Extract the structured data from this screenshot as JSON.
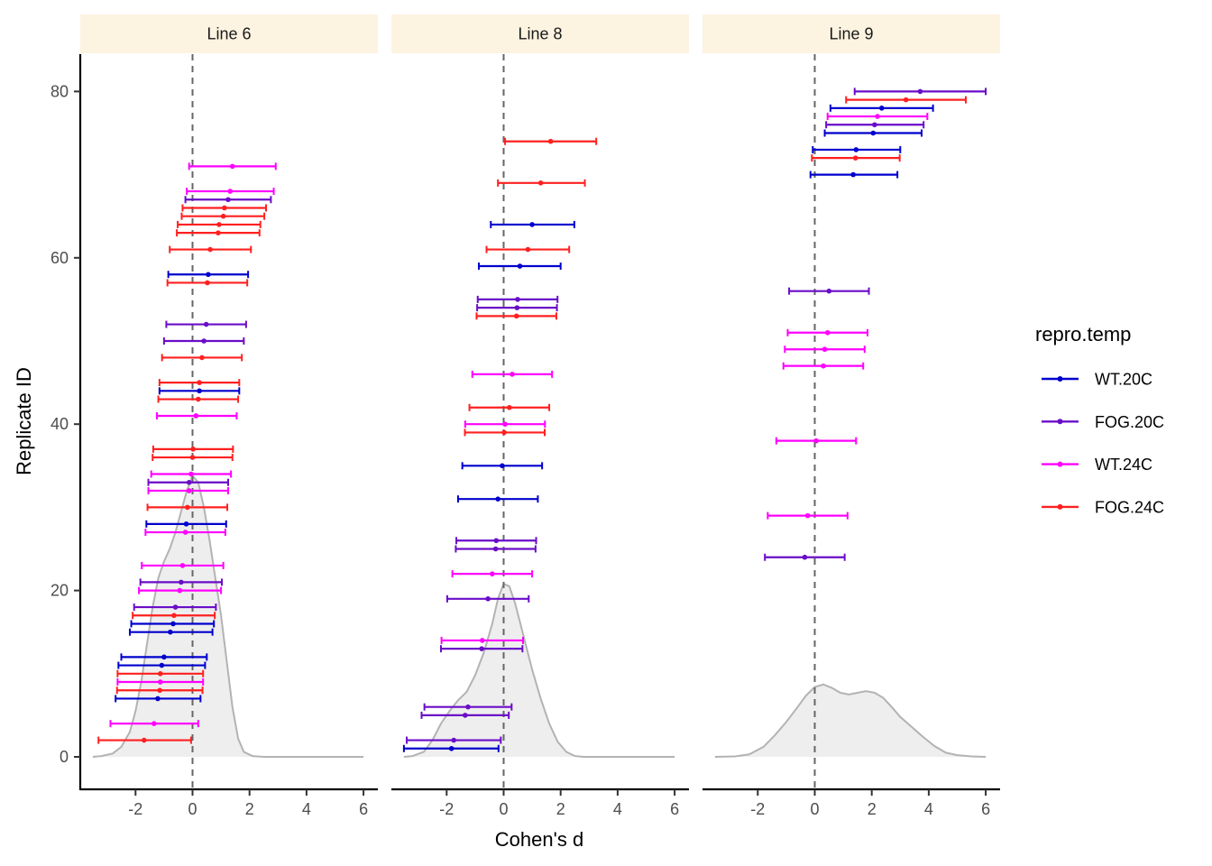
{
  "chart_data": {
    "type": "forest-facet",
    "xlabel": "Cohen's d",
    "ylabel": "Replicate ID",
    "xlim": [
      -3.7,
      6.3
    ],
    "ylim": [
      -4,
      84
    ],
    "x_ticks": [
      -2,
      0,
      2,
      4,
      6
    ],
    "x_tick_labels": [
      "-2",
      "0",
      "2",
      "4",
      "6"
    ],
    "y_ticks": [
      0,
      20,
      40,
      60,
      80
    ],
    "y_tick_labels": [
      "0",
      "20",
      "40",
      "60",
      "80"
    ],
    "reference_line_x": 0,
    "grid": false,
    "legend": {
      "title": "repro.temp",
      "position": "right",
      "entries": [
        {
          "label": "WT.20C",
          "color": "#0000CD"
        },
        {
          "label": "FOG.20C",
          "color": "#6A0DC8"
        },
        {
          "label": "WT.24C",
          "color": "#FF00FF"
        },
        {
          "label": "FOG.24C",
          "color": "#FF2020"
        }
      ]
    },
    "density_fill": "#EEEEEE",
    "density_stroke": "#B3B3B3",
    "strip_fill": "#FDF3E1",
    "panels": [
      {
        "label": "Line 6",
        "density": [
          [
            -3.5,
            0
          ],
          [
            -3.2,
            0.1
          ],
          [
            -2.8,
            0.4
          ],
          [
            -2.5,
            1.2
          ],
          [
            -2.2,
            3.0
          ],
          [
            -2.0,
            5.5
          ],
          [
            -1.8,
            9.0
          ],
          [
            -1.6,
            13.5
          ],
          [
            -1.4,
            18.0
          ],
          [
            -1.2,
            21.5
          ],
          [
            -1.0,
            23.5
          ],
          [
            -0.8,
            25.0
          ],
          [
            -0.6,
            27.0
          ],
          [
            -0.4,
            29.5
          ],
          [
            -0.2,
            32.0
          ],
          [
            0.0,
            33.8
          ],
          [
            0.2,
            33.0
          ],
          [
            0.4,
            30.0
          ],
          [
            0.6,
            26.0
          ],
          [
            0.8,
            21.5
          ],
          [
            1.0,
            17.0
          ],
          [
            1.2,
            11.5
          ],
          [
            1.4,
            6.0
          ],
          [
            1.6,
            2.2
          ],
          [
            1.8,
            0.6
          ],
          [
            2.1,
            0.1
          ],
          [
            2.5,
            0
          ],
          [
            6.0,
            0
          ]
        ],
        "intervals": [
          {
            "group": "FOG.24C",
            "y": 2,
            "d": -1.7,
            "lo": -3.3,
            "hi": -0.05
          },
          {
            "group": "WT.24C",
            "y": 4,
            "d": -1.35,
            "lo": -2.88,
            "hi": 0.2
          },
          {
            "group": "WT.20C",
            "y": 7,
            "d": -1.22,
            "lo": -2.7,
            "hi": 0.28
          },
          {
            "group": "FOG.24C",
            "y": 8,
            "d": -1.15,
            "lo": -2.65,
            "hi": 0.35
          },
          {
            "group": "WT.24C",
            "y": 9,
            "d": -1.13,
            "lo": -2.63,
            "hi": 0.37
          },
          {
            "group": "FOG.24C",
            "y": 10,
            "d": -1.13,
            "lo": -2.63,
            "hi": 0.37
          },
          {
            "group": "WT.20C",
            "y": 11,
            "d": -1.08,
            "lo": -2.6,
            "hi": 0.44
          },
          {
            "group": "WT.20C",
            "y": 12,
            "d": -1.0,
            "lo": -2.5,
            "hi": 0.5
          },
          {
            "group": "WT.20C",
            "y": 15,
            "d": -0.78,
            "lo": -2.2,
            "hi": 0.7
          },
          {
            "group": "WT.20C",
            "y": 16,
            "d": -0.68,
            "lo": -2.15,
            "hi": 0.75
          },
          {
            "group": "FOG.24C",
            "y": 17,
            "d": -0.65,
            "lo": -2.1,
            "hi": 0.78
          },
          {
            "group": "FOG.20C",
            "y": 18,
            "d": -0.6,
            "lo": -2.05,
            "hi": 0.82
          },
          {
            "group": "WT.24C",
            "y": 20,
            "d": -0.45,
            "lo": -1.88,
            "hi": 1.0
          },
          {
            "group": "FOG.20C",
            "y": 21,
            "d": -0.4,
            "lo": -1.83,
            "hi": 1.03
          },
          {
            "group": "WT.24C",
            "y": 23,
            "d": -0.35,
            "lo": -1.78,
            "hi": 1.08
          },
          {
            "group": "WT.24C",
            "y": 27,
            "d": -0.25,
            "lo": -1.65,
            "hi": 1.15
          },
          {
            "group": "WT.20C",
            "y": 28,
            "d": -0.22,
            "lo": -1.62,
            "hi": 1.18
          },
          {
            "group": "FOG.24C",
            "y": 30,
            "d": -0.18,
            "lo": -1.58,
            "hi": 1.22
          },
          {
            "group": "WT.24C",
            "y": 32,
            "d": -0.12,
            "lo": -1.55,
            "hi": 1.25
          },
          {
            "group": "FOG.20C",
            "y": 33,
            "d": -0.12,
            "lo": -1.55,
            "hi": 1.25
          },
          {
            "group": "WT.24C",
            "y": 34,
            "d": -0.05,
            "lo": -1.45,
            "hi": 1.35
          },
          {
            "group": "FOG.24C",
            "y": 36,
            "d": 0.0,
            "lo": -1.4,
            "hi": 1.4
          },
          {
            "group": "FOG.24C",
            "y": 37,
            "d": 0.02,
            "lo": -1.38,
            "hi": 1.42
          },
          {
            "group": "WT.24C",
            "y": 41,
            "d": 0.12,
            "lo": -1.25,
            "hi": 1.55
          },
          {
            "group": "FOG.24C",
            "y": 43,
            "d": 0.2,
            "lo": -1.2,
            "hi": 1.6
          },
          {
            "group": "WT.20C",
            "y": 44,
            "d": 0.24,
            "lo": -1.16,
            "hi": 1.64
          },
          {
            "group": "FOG.24C",
            "y": 45,
            "d": 0.24,
            "lo": -1.16,
            "hi": 1.64
          },
          {
            "group": "FOG.24C",
            "y": 48,
            "d": 0.33,
            "lo": -1.07,
            "hi": 1.73
          },
          {
            "group": "FOG.20C",
            "y": 50,
            "d": 0.4,
            "lo": -1.0,
            "hi": 1.8
          },
          {
            "group": "FOG.20C",
            "y": 52,
            "d": 0.48,
            "lo": -0.92,
            "hi": 1.88
          },
          {
            "group": "FOG.24C",
            "y": 57,
            "d": 0.52,
            "lo": -0.88,
            "hi": 1.92
          },
          {
            "group": "WT.20C",
            "y": 58,
            "d": 0.55,
            "lo": -0.85,
            "hi": 1.95
          },
          {
            "group": "FOG.24C",
            "y": 61,
            "d": 0.62,
            "lo": -0.8,
            "hi": 2.05
          },
          {
            "group": "FOG.24C",
            "y": 63,
            "d": 0.9,
            "lo": -0.55,
            "hi": 2.35
          },
          {
            "group": "FOG.24C",
            "y": 64,
            "d": 0.93,
            "lo": -0.52,
            "hi": 2.38
          },
          {
            "group": "FOG.24C",
            "y": 65,
            "d": 1.08,
            "lo": -0.38,
            "hi": 2.52
          },
          {
            "group": "FOG.24C",
            "y": 66,
            "d": 1.12,
            "lo": -0.35,
            "hi": 2.58
          },
          {
            "group": "FOG.20C",
            "y": 67,
            "d": 1.25,
            "lo": -0.25,
            "hi": 2.75
          },
          {
            "group": "WT.24C",
            "y": 68,
            "d": 1.32,
            "lo": -0.2,
            "hi": 2.85
          },
          {
            "group": "WT.24C",
            "y": 71,
            "d": 1.4,
            "lo": -0.12,
            "hi": 2.92
          }
        ]
      },
      {
        "label": "Line 8",
        "density": [
          [
            -3.5,
            0
          ],
          [
            -3.2,
            0.1
          ],
          [
            -2.8,
            0.6
          ],
          [
            -2.5,
            2.0
          ],
          [
            -2.2,
            4.0
          ],
          [
            -1.9,
            5.5
          ],
          [
            -1.6,
            6.8
          ],
          [
            -1.3,
            7.8
          ],
          [
            -1.0,
            9.8
          ],
          [
            -0.7,
            12.5
          ],
          [
            -0.4,
            16.0
          ],
          [
            -0.2,
            19.0
          ],
          [
            0.0,
            20.8
          ],
          [
            0.2,
            20.5
          ],
          [
            0.4,
            18.5
          ],
          [
            0.7,
            14.5
          ],
          [
            1.0,
            10.5
          ],
          [
            1.3,
            7.0
          ],
          [
            1.6,
            4.0
          ],
          [
            1.9,
            1.8
          ],
          [
            2.2,
            0.6
          ],
          [
            2.5,
            0.1
          ],
          [
            2.8,
            0
          ],
          [
            6.0,
            0
          ]
        ],
        "intervals": [
          {
            "group": "WT.20C",
            "y": 1,
            "d": -1.83,
            "lo": -3.5,
            "hi": -0.18
          },
          {
            "group": "FOG.20C",
            "y": 2,
            "d": -1.75,
            "lo": -3.4,
            "hi": -0.1
          },
          {
            "group": "FOG.20C",
            "y": 5,
            "d": -1.35,
            "lo": -2.88,
            "hi": 0.18
          },
          {
            "group": "FOG.20C",
            "y": 6,
            "d": -1.25,
            "lo": -2.78,
            "hi": 0.28
          },
          {
            "group": "FOG.20C",
            "y": 13,
            "d": -0.77,
            "lo": -2.2,
            "hi": 0.66
          },
          {
            "group": "WT.24C",
            "y": 14,
            "d": -0.75,
            "lo": -2.18,
            "hi": 0.68
          },
          {
            "group": "FOG.20C",
            "y": 19,
            "d": -0.55,
            "lo": -1.98,
            "hi": 0.88
          },
          {
            "group": "WT.24C",
            "y": 22,
            "d": -0.4,
            "lo": -1.8,
            "hi": 1.0
          },
          {
            "group": "FOG.20C",
            "y": 25,
            "d": -0.28,
            "lo": -1.68,
            "hi": 1.12
          },
          {
            "group": "FOG.20C",
            "y": 26,
            "d": -0.26,
            "lo": -1.66,
            "hi": 1.14
          },
          {
            "group": "WT.20C",
            "y": 31,
            "d": -0.2,
            "lo": -1.6,
            "hi": 1.2
          },
          {
            "group": "WT.20C",
            "y": 35,
            "d": -0.05,
            "lo": -1.45,
            "hi": 1.35
          },
          {
            "group": "FOG.24C",
            "y": 39,
            "d": 0.02,
            "lo": -1.36,
            "hi": 1.44
          },
          {
            "group": "WT.24C",
            "y": 40,
            "d": 0.05,
            "lo": -1.35,
            "hi": 1.45
          },
          {
            "group": "FOG.24C",
            "y": 42,
            "d": 0.2,
            "lo": -1.2,
            "hi": 1.6
          },
          {
            "group": "WT.24C",
            "y": 46,
            "d": 0.3,
            "lo": -1.1,
            "hi": 1.7
          },
          {
            "group": "FOG.24C",
            "y": 53,
            "d": 0.45,
            "lo": -0.95,
            "hi": 1.85
          },
          {
            "group": "FOG.20C",
            "y": 54,
            "d": 0.47,
            "lo": -0.93,
            "hi": 1.87
          },
          {
            "group": "FOG.20C",
            "y": 55,
            "d": 0.49,
            "lo": -0.91,
            "hi": 1.89
          },
          {
            "group": "WT.20C",
            "y": 59,
            "d": 0.57,
            "lo": -0.87,
            "hi": 2.0
          },
          {
            "group": "FOG.24C",
            "y": 61,
            "d": 0.85,
            "lo": -0.6,
            "hi": 2.3
          },
          {
            "group": "WT.20C",
            "y": 64,
            "d": 1.0,
            "lo": -0.45,
            "hi": 2.48
          },
          {
            "group": "FOG.24C",
            "y": 69,
            "d": 1.3,
            "lo": -0.2,
            "hi": 2.85
          },
          {
            "group": "FOG.24C",
            "y": 74,
            "d": 1.65,
            "lo": 0.05,
            "hi": 3.25
          }
        ]
      },
      {
        "label": "Line 9",
        "density": [
          [
            -3.5,
            0
          ],
          [
            -2.8,
            0.05
          ],
          [
            -2.3,
            0.3
          ],
          [
            -1.8,
            1.2
          ],
          [
            -1.4,
            2.6
          ],
          [
            -1.0,
            4.2
          ],
          [
            -0.6,
            6.0
          ],
          [
            -0.3,
            7.4
          ],
          [
            0.0,
            8.4
          ],
          [
            0.3,
            8.7
          ],
          [
            0.6,
            8.3
          ],
          [
            0.9,
            7.7
          ],
          [
            1.2,
            7.5
          ],
          [
            1.5,
            7.7
          ],
          [
            1.8,
            7.9
          ],
          [
            2.1,
            7.7
          ],
          [
            2.4,
            7.1
          ],
          [
            2.7,
            6.0
          ],
          [
            3.0,
            4.8
          ],
          [
            3.4,
            3.6
          ],
          [
            3.8,
            2.4
          ],
          [
            4.2,
            1.3
          ],
          [
            4.6,
            0.5
          ],
          [
            5.0,
            0.2
          ],
          [
            5.5,
            0.05
          ],
          [
            6.0,
            0
          ]
        ],
        "intervals": [
          {
            "group": "FOG.20C",
            "y": 24,
            "d": -0.35,
            "lo": -1.75,
            "hi": 1.05
          },
          {
            "group": "WT.24C",
            "y": 29,
            "d": -0.25,
            "lo": -1.65,
            "hi": 1.15
          },
          {
            "group": "WT.24C",
            "y": 38,
            "d": 0.05,
            "lo": -1.35,
            "hi": 1.45
          },
          {
            "group": "WT.24C",
            "y": 47,
            "d": 0.3,
            "lo": -1.1,
            "hi": 1.7
          },
          {
            "group": "WT.24C",
            "y": 49,
            "d": 0.35,
            "lo": -1.05,
            "hi": 1.75
          },
          {
            "group": "WT.24C",
            "y": 51,
            "d": 0.45,
            "lo": -0.95,
            "hi": 1.85
          },
          {
            "group": "FOG.20C",
            "y": 56,
            "d": 0.5,
            "lo": -0.9,
            "hi": 1.9
          },
          {
            "group": "WT.20C",
            "y": 70,
            "d": 1.35,
            "lo": -0.15,
            "hi": 2.9
          },
          {
            "group": "FOG.24C",
            "y": 72,
            "d": 1.43,
            "lo": -0.1,
            "hi": 2.98
          },
          {
            "group": "WT.20C",
            "y": 73,
            "d": 1.45,
            "lo": -0.07,
            "hi": 3.0
          },
          {
            "group": "WT.20C",
            "y": 75,
            "d": 2.05,
            "lo": 0.35,
            "hi": 3.75
          },
          {
            "group": "FOG.20C",
            "y": 76,
            "d": 2.1,
            "lo": 0.4,
            "hi": 3.82
          },
          {
            "group": "WT.24C",
            "y": 77,
            "d": 2.2,
            "lo": 0.45,
            "hi": 3.95
          },
          {
            "group": "WT.20C",
            "y": 78,
            "d": 2.35,
            "lo": 0.55,
            "hi": 4.15
          },
          {
            "group": "FOG.24C",
            "y": 79,
            "d": 3.2,
            "lo": 1.1,
            "hi": 5.3
          },
          {
            "group": "FOG.20C",
            "y": 80,
            "d": 3.7,
            "lo": 1.4,
            "hi": 6.0
          }
        ]
      }
    ]
  }
}
